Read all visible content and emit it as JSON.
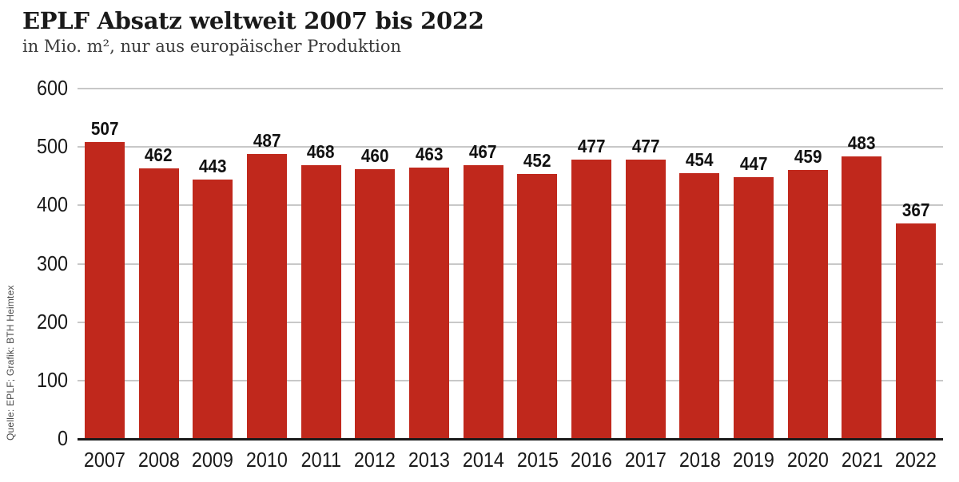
{
  "header": {
    "title": "EPLF Absatz weltweit 2007 bis 2022",
    "subtitle": "in Mio. m², nur aus europäischer Produktion"
  },
  "source_label": "Quelle: EPLF; Grafik: BTH Heimtex",
  "chart_data": {
    "type": "bar",
    "title": "EPLF Absatz weltweit 2007 bis 2022",
    "subtitle": "in Mio. m², nur aus europäischer Produktion",
    "source": "Quelle: EPLF; Grafik: BTH Heimtex",
    "categories": [
      "2007",
      "2008",
      "2009",
      "2010",
      "2011",
      "2012",
      "2013",
      "2014",
      "2015",
      "2016",
      "2017",
      "2018",
      "2019",
      "2020",
      "2021",
      "2022"
    ],
    "values": [
      507,
      462,
      443,
      487,
      468,
      460,
      463,
      467,
      452,
      477,
      477,
      454,
      447,
      459,
      483,
      367
    ],
    "data_labels_shown": true,
    "xlabel": "",
    "ylabel": "",
    "ylim": [
      0,
      600
    ],
    "yticks": [
      0,
      100,
      200,
      300,
      400,
      500,
      600
    ],
    "grid": true,
    "legend": "none",
    "colors": {
      "bar": "#c0281c",
      "grid": "#c8c8c8",
      "axis": "#1a1a1a",
      "text": "#1a1a1a"
    }
  }
}
